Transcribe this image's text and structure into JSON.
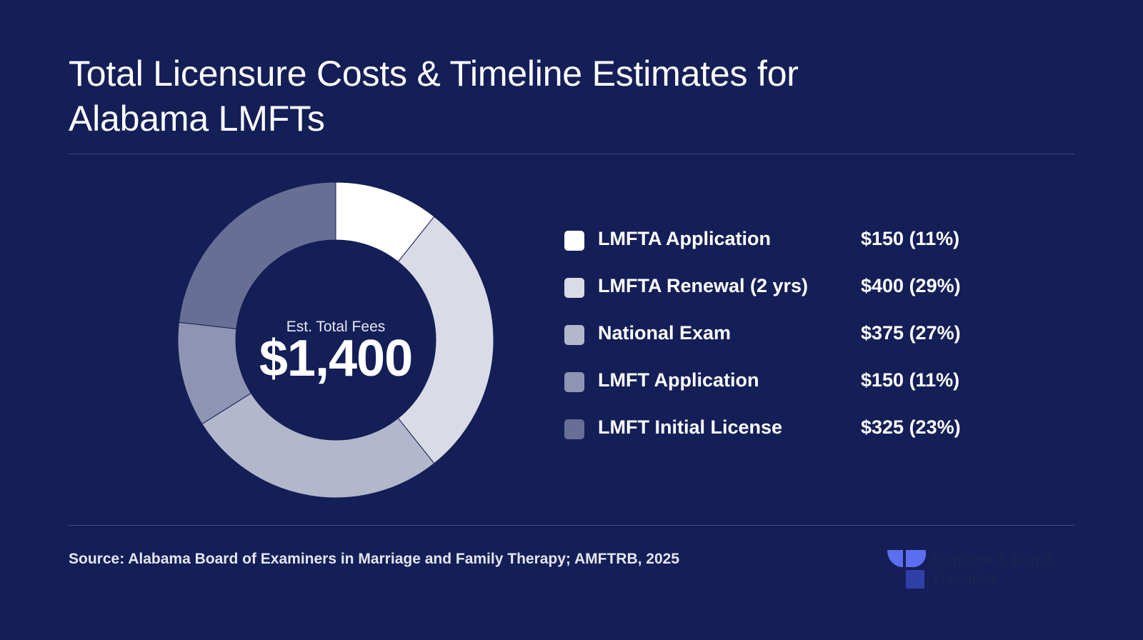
{
  "title": "Total Licensure Costs & Timeline Estimates for Alabama LMFTs",
  "center": {
    "label": "Est. Total Fees",
    "value": "$1,400"
  },
  "chart_data": {
    "type": "pie",
    "title": "Total Licensure Costs & Timeline Estimates for Alabama LMFTs",
    "total": 1400,
    "slices": [
      {
        "label": "LMFTA Application",
        "value": 150,
        "percent": 11,
        "display": "$150 (11%)",
        "color": "#ffffff"
      },
      {
        "label": "LMFTA Renewal (2 yrs)",
        "value": 400,
        "percent": 29,
        "display": "$400 (29%)",
        "color": "#d9dbe6"
      },
      {
        "label": "National Exam",
        "value": 375,
        "percent": 27,
        "display": "$375 (27%)",
        "color": "#b3b7cc"
      },
      {
        "label": "LMFT Application",
        "value": 150,
        "percent": 11,
        "display": "$150 (11%)",
        "color": "#8f94b3"
      },
      {
        "label": "LMFT Initial License",
        "value": 325,
        "percent": 23,
        "display": "$325 (23%)",
        "color": "#676f94"
      }
    ]
  },
  "source": "Source: Alabama Board of Examiners in Marriage and Family Therapy; AMFTRB, 2025",
  "brand": {
    "line1": "Marriage & Family",
    "line2": "Therapist",
    "icon": "mft-logo-icon",
    "accent": "#5b6ef0",
    "accent_dark": "#2f3fa8"
  },
  "colors": {
    "background": "#141f57",
    "divider": "#3f4a7e"
  }
}
